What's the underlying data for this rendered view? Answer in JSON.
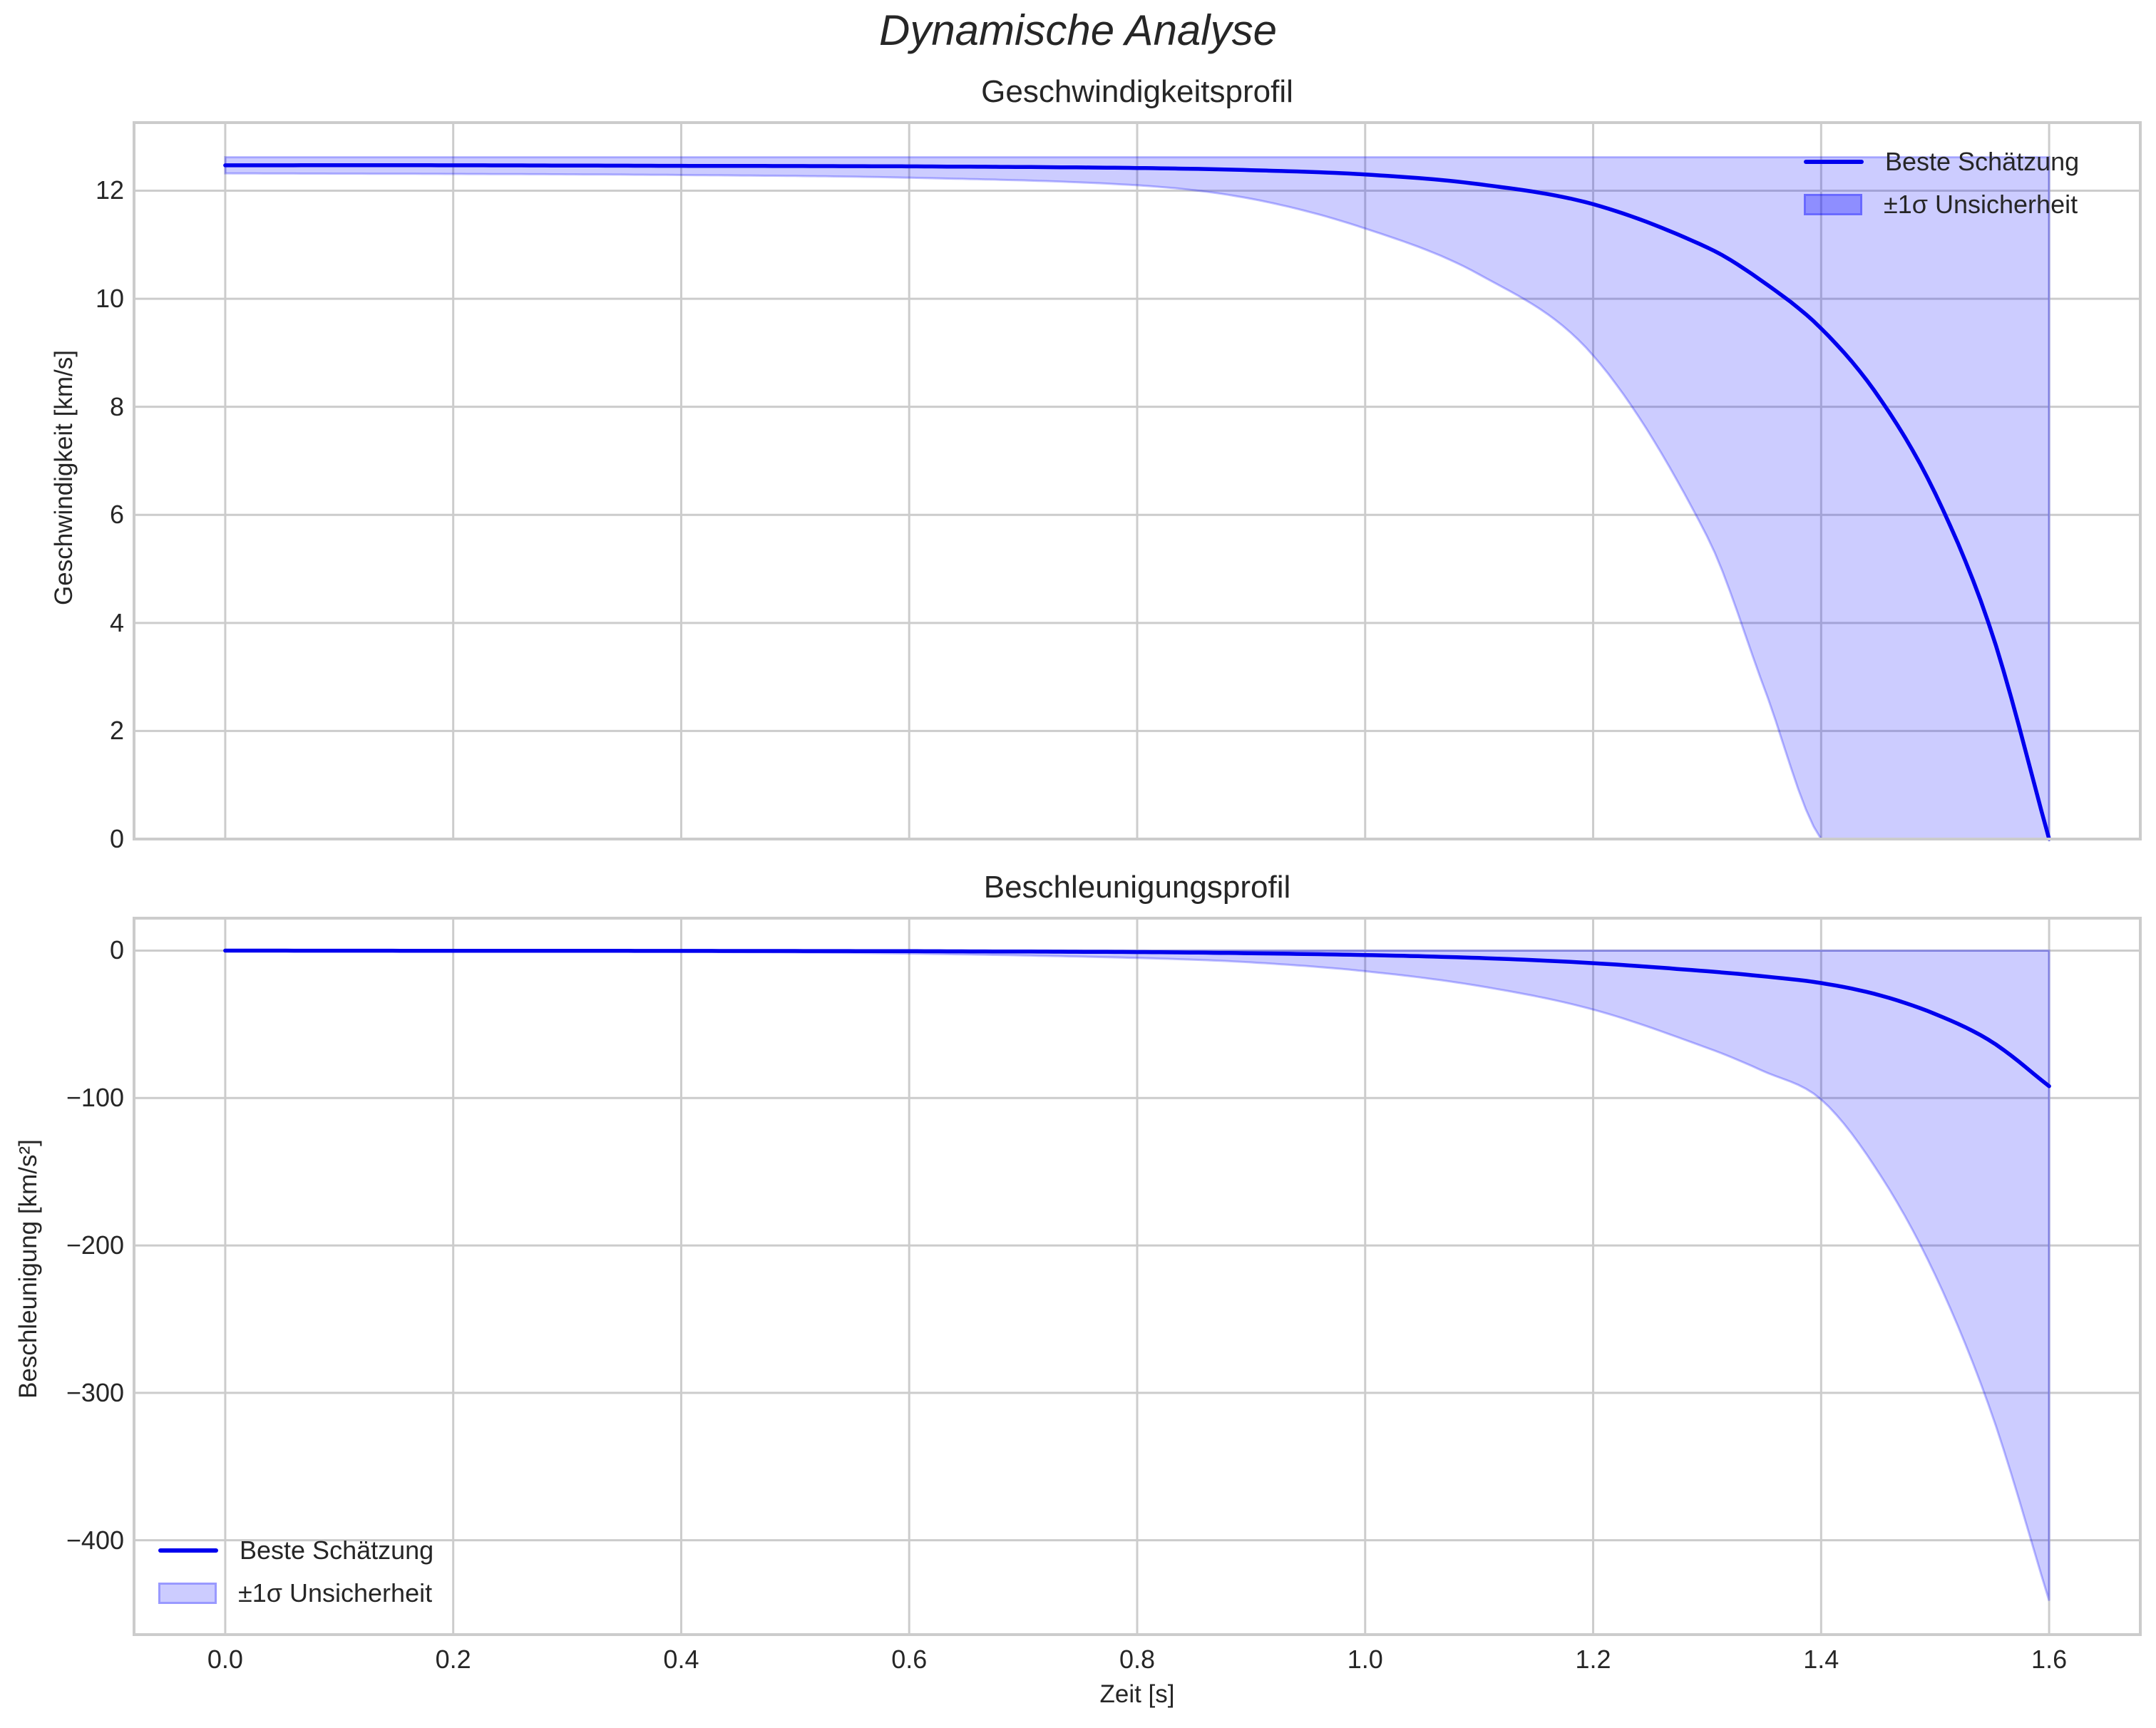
{
  "figure": {
    "suptitle": "Dynamische Analyse"
  },
  "colors": {
    "line": "#0000ee",
    "band_fill": "rgba(0,0,255,0.2)",
    "grid": "#cccccc",
    "spine": "#cccccc",
    "text": "#262626"
  },
  "top": {
    "title": "Geschwindigkeitsprofil",
    "ylabel": "Geschwindigkeit [km/s]",
    "yticks": [
      "0",
      "2",
      "4",
      "6",
      "8",
      "10",
      "12"
    ],
    "legend": {
      "line_label": "Beste Schätzung",
      "band_label": "±1σ Unsicherheit"
    }
  },
  "bottom": {
    "title": "Beschleunigungsprofil",
    "ylabel": "Beschleunigung [km/s²]",
    "xlabel": "Zeit [s]",
    "yticks": [
      "0",
      "−100",
      "−200",
      "−300",
      "−400"
    ],
    "xticks": [
      "0.0",
      "0.2",
      "0.4",
      "0.6",
      "0.8",
      "1.0",
      "1.2",
      "1.4",
      "1.6"
    ],
    "legend": {
      "line_label": "Beste Schätzung",
      "band_label": "±1σ Unsicherheit"
    }
  },
  "chart_data": [
    {
      "type": "line",
      "title": "Geschwindigkeitsprofil",
      "xlabel": "Zeit [s]",
      "ylabel": "Geschwindigkeit [km/s]",
      "xlim": [
        -0.08,
        1.68
      ],
      "ylim": [
        0,
        13.26
      ],
      "grid": true,
      "legend_position": "upper right",
      "x": [
        0.0,
        0.2,
        0.4,
        0.6,
        0.8,
        0.9,
        1.0,
        1.1,
        1.2,
        1.3,
        1.35,
        1.4,
        1.45,
        1.5,
        1.55,
        1.6
      ],
      "series": [
        {
          "name": "Beste Schätzung",
          "values": [
            12.47,
            12.47,
            12.46,
            12.45,
            12.42,
            12.38,
            12.3,
            12.12,
            11.75,
            10.95,
            10.3,
            9.45,
            8.2,
            6.4,
            3.8,
            0.0
          ]
        },
        {
          "name": "±1σ Unsicherheit (upper)",
          "values": [
            12.62,
            12.62,
            12.62,
            12.62,
            12.62,
            12.62,
            12.62,
            12.62,
            12.62,
            12.62,
            12.62,
            12.62,
            12.62,
            12.62,
            12.62,
            12.62
          ]
        },
        {
          "name": "±1σ Unsicherheit (lower)",
          "values": [
            12.32,
            12.31,
            12.29,
            12.24,
            12.1,
            11.85,
            11.3,
            10.45,
            8.95,
            5.6,
            2.8,
            0.0,
            0.0,
            0.0,
            0.0,
            0.0
          ]
        }
      ],
      "yticks": [
        0,
        2,
        4,
        6,
        8,
        10,
        12
      ],
      "xticks": [
        0.0,
        0.2,
        0.4,
        0.6,
        0.8,
        1.0,
        1.2,
        1.4,
        1.6
      ]
    },
    {
      "type": "line",
      "title": "Beschleunigungsprofil",
      "xlabel": "Zeit [s]",
      "ylabel": "Beschleunigung [km/s²]",
      "xlim": [
        -0.08,
        1.68
      ],
      "ylim": [
        -464,
        22
      ],
      "grid": true,
      "legend_position": "lower left",
      "x": [
        0.0,
        0.2,
        0.4,
        0.6,
        0.8,
        0.9,
        1.0,
        1.1,
        1.2,
        1.3,
        1.35,
        1.4,
        1.45,
        1.5,
        1.55,
        1.6
      ],
      "series": [
        {
          "name": "Beste Schätzung",
          "values": [
            0.0,
            -0.1,
            -0.2,
            -0.4,
            -1.0,
            -1.8,
            -3.0,
            -5.0,
            -8.5,
            -14.0,
            -17.5,
            -22.0,
            -30.0,
            -43.0,
            -62.0,
            -92.0
          ]
        },
        {
          "name": "±1σ Unsicherheit (upper)",
          "values": [
            0,
            0,
            0,
            0,
            0,
            0,
            0,
            0,
            0,
            0,
            0,
            0,
            0,
            0,
            0,
            0
          ]
        },
        {
          "name": "±1σ Unsicherheit (lower)",
          "values": [
            0.0,
            -0.3,
            -0.8,
            -2.0,
            -5.0,
            -8.0,
            -14.0,
            -24.0,
            -40.0,
            -66.0,
            -82.0,
            -101.0,
            -150.0,
            -220.0,
            -315.0,
            -441.0
          ]
        }
      ],
      "yticks": [
        0,
        -100,
        -200,
        -300,
        -400
      ],
      "xticks": [
        0.0,
        0.2,
        0.4,
        0.6,
        0.8,
        1.0,
        1.2,
        1.4,
        1.6
      ]
    }
  ]
}
